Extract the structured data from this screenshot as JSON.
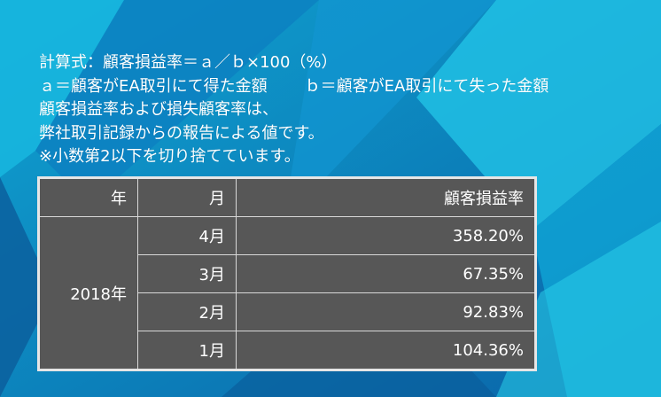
{
  "notes": {
    "formula": "計算式：顧客損益率＝ａ／ｂ×100（%）",
    "def_a": "ａ＝顧客がEA取引にて得た金額",
    "def_b": "ｂ＝顧客がEA取引にて失った金額",
    "line3": "顧客損益率および損失顧客率は、",
    "line4": "弊社取引記録からの報告による値です。",
    "line5": "※小数第2以下を切り捨てています。"
  },
  "table": {
    "headers": {
      "year": "年",
      "month": "月",
      "rate": "顧客損益率"
    },
    "year": "2018年",
    "rows": [
      {
        "month": "4月",
        "rate": "358.20%"
      },
      {
        "month": "3月",
        "rate": "67.35%"
      },
      {
        "month": "2月",
        "rate": "92.83%"
      },
      {
        "month": "1月",
        "rate": "104.36%"
      }
    ]
  },
  "colors": {
    "background_light": "#1fb6d8",
    "background_dark": "#0a5fa0",
    "table_bg": "#575757",
    "table_border": "#e6e6e6",
    "text": "#ffffff"
  }
}
